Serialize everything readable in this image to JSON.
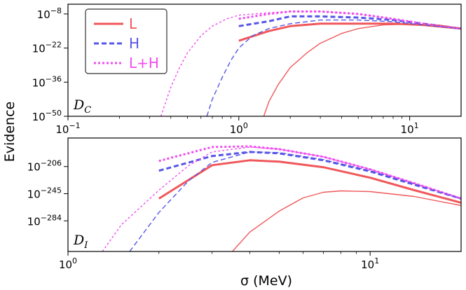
{
  "chart_data": [
    {
      "type": "line",
      "panel_label_main": "D",
      "panel_label_sub": "C",
      "xlabel": "",
      "ylabel": "Evidence",
      "xscale": "log",
      "yscale": "log",
      "xlim": [
        0.1,
        20
      ],
      "ylim_exp": [
        -50,
        -4
      ],
      "x_ticks": [
        {
          "value": 0.1,
          "base": "10",
          "exp": "−1"
        },
        {
          "value": 1,
          "base": "10",
          "exp": "0"
        },
        {
          "value": 10,
          "base": "10",
          "exp": "1"
        }
      ],
      "y_ticks": [
        {
          "exp_value": -8,
          "base": "10",
          "exp": "−8"
        },
        {
          "exp_value": -22,
          "base": "10",
          "exp": "−22"
        },
        {
          "exp_value": -36,
          "base": "10",
          "exp": "−36"
        },
        {
          "exp_value": -50,
          "base": "10",
          "exp": "−50"
        }
      ],
      "series": [
        {
          "name": "L",
          "color": "#f0575a",
          "style": "solid",
          "weight": "bold",
          "x": [
            1,
            1.5,
            2,
            3,
            5,
            8,
            12,
            20
          ],
          "y_exp": [
            -19,
            -15,
            -13,
            -12,
            -12,
            -12,
            -12.5,
            -14
          ]
        },
        {
          "name": "H",
          "color": "#5555e8",
          "style": "dashed",
          "weight": "bold",
          "x": [
            1,
            1.5,
            2,
            3,
            5,
            8,
            12,
            20
          ],
          "y_exp": [
            -13,
            -11,
            -9,
            -9,
            -9.5,
            -10.5,
            -12,
            -14
          ]
        },
        {
          "name": "L+H",
          "color": "#f04cf0",
          "style": "dotted",
          "weight": "bold",
          "x": [
            1,
            1.5,
            2,
            3,
            5,
            8,
            12,
            20
          ],
          "y_exp": [
            -10,
            -8,
            -7,
            -7,
            -8,
            -10,
            -12,
            -14
          ]
        },
        {
          "name": "",
          "color": "#f0575a",
          "style": "solid",
          "weight": "thin",
          "x": [
            1.4,
            1.5,
            1.7,
            2,
            2.5,
            3,
            4,
            5,
            7,
            10,
            15,
            20
          ],
          "y_exp": [
            -50,
            -44,
            -37,
            -30,
            -24,
            -20,
            -16,
            -14,
            -12.5,
            -12.2,
            -12.6,
            -14
          ]
        },
        {
          "name": "",
          "color": "#5555e8",
          "style": "dashed",
          "weight": "thin",
          "x": [
            0.65,
            0.7,
            0.8,
            0.9,
            1,
            1.2,
            1.5,
            2,
            3,
            5,
            8,
            12,
            20
          ],
          "y_exp": [
            -50,
            -43,
            -34,
            -27,
            -22,
            -17,
            -14,
            -12,
            -10.5,
            -10.5,
            -11.2,
            -12.5,
            -14
          ]
        },
        {
          "name": "",
          "color": "#f04cf0",
          "style": "dotted",
          "weight": "thin",
          "x": [
            0.35,
            0.4,
            0.45,
            0.5,
            0.6,
            0.7,
            0.85,
            1,
            1.5,
            2,
            3,
            5,
            8,
            12,
            20
          ],
          "y_exp": [
            -50,
            -38,
            -30,
            -24,
            -17,
            -13,
            -10,
            -8.5,
            -7.5,
            -7,
            -7,
            -8,
            -10,
            -12,
            -14
          ]
        }
      ]
    },
    {
      "type": "line",
      "panel_label_main": "D",
      "panel_label_sub": "I",
      "xlabel": "σ (MeV)",
      "ylabel": "",
      "xscale": "log",
      "yscale": "log",
      "xlim": [
        1,
        20
      ],
      "ylim_exp": [
        -328,
        -165
      ],
      "x_ticks": [
        {
          "value": 1,
          "base": "10",
          "exp": "0"
        },
        {
          "value": 10,
          "base": "10",
          "exp": "1"
        }
      ],
      "y_ticks": [
        {
          "exp_value": -206,
          "base": "10",
          "exp": "−206"
        },
        {
          "exp_value": -245,
          "base": "10",
          "exp": "−245"
        },
        {
          "exp_value": -284,
          "base": "10",
          "exp": "−284"
        }
      ],
      "series": [
        {
          "name": "L",
          "color": "#f0575a",
          "style": "solid",
          "weight": "bold",
          "x": [
            2,
            3,
            4,
            5,
            7,
            10,
            14,
            20
          ],
          "y_exp": [
            -252,
            -204,
            -197,
            -199,
            -207,
            -222,
            -240,
            -258
          ]
        },
        {
          "name": "H",
          "color": "#5555e8",
          "style": "dashed",
          "weight": "bold",
          "x": [
            2,
            3,
            4,
            5,
            7,
            10,
            14,
            20
          ],
          "y_exp": [
            -212,
            -191,
            -185,
            -187,
            -197,
            -213,
            -232,
            -252
          ]
        },
        {
          "name": "L+H",
          "color": "#f04cf0",
          "style": "dotted",
          "weight": "bold",
          "x": [
            2,
            3,
            4,
            5,
            7,
            10,
            14,
            20
          ],
          "y_exp": [
            -198,
            -178,
            -177,
            -181,
            -192,
            -210,
            -230,
            -252
          ]
        },
        {
          "name": "",
          "color": "#f0575a",
          "style": "solid",
          "weight": "thin",
          "x": [
            3.5,
            4,
            5,
            6,
            7,
            8,
            10,
            14,
            20
          ],
          "y_exp": [
            -328,
            -300,
            -270,
            -251,
            -243,
            -241,
            -242,
            -249,
            -262
          ]
        },
        {
          "name": "",
          "color": "#5555e8",
          "style": "dashed",
          "weight": "thin",
          "x": [
            1.6,
            2,
            2.5,
            3,
            4,
            5,
            7,
            10,
            14,
            20
          ],
          "y_exp": [
            -328,
            -272,
            -227,
            -200,
            -185,
            -186,
            -196,
            -212,
            -231,
            -252
          ]
        },
        {
          "name": "",
          "color": "#f04cf0",
          "style": "dotted",
          "weight": "thin",
          "x": [
            1.3,
            1.5,
            2,
            2.5,
            3,
            4,
            5,
            7,
            10,
            14,
            20
          ],
          "y_exp": [
            -328,
            -290,
            -240,
            -205,
            -185,
            -178,
            -181,
            -192,
            -210,
            -230,
            -252
          ]
        }
      ]
    }
  ],
  "legend": [
    {
      "label": "L",
      "color": "#f0575a",
      "style": "solid"
    },
    {
      "label": "H",
      "color": "#5555e8",
      "style": "dashed"
    },
    {
      "label": "L+H",
      "color": "#f04cf0",
      "style": "dotted"
    }
  ]
}
